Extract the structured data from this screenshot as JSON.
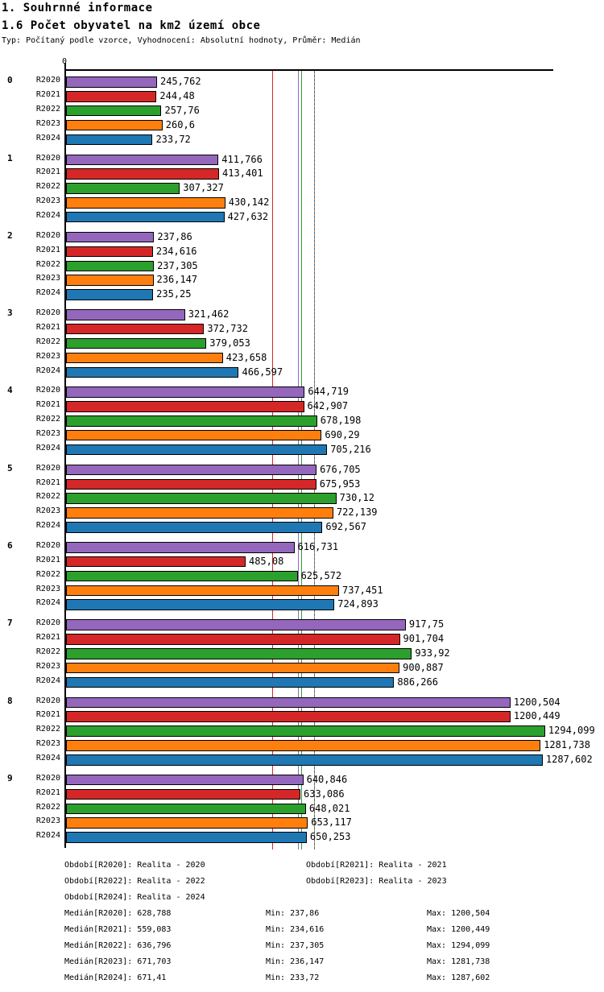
{
  "header": {
    "title": "1. Souhrnné informace",
    "subtitle": "1.6 Počet obyvatel na km2 území obce",
    "meta": "Typ: Počítaný podle vzorce, Vyhodnocení: Absolutní hodnoty, Průměr: Medián"
  },
  "chart_data": {
    "type": "bar",
    "orientation": "horizontal",
    "origin_label": "0",
    "xlim": [
      0,
      1425
    ],
    "grid": false,
    "series": [
      "R2020",
      "R2021",
      "R2022",
      "R2023",
      "R2024"
    ],
    "series_colors": {
      "R2020": "#9467bd",
      "R2021": "#d62728",
      "R2022": "#2ca02c",
      "R2023": "#ff7f0e",
      "R2024": "#1f77b4"
    },
    "groups": [
      {
        "label": "0",
        "values": [
          "245,762",
          "244,48",
          "257,76",
          "260,6",
          "233,72"
        ]
      },
      {
        "label": "1",
        "values": [
          "411,766",
          "413,401",
          "307,327",
          "430,142",
          "427,632"
        ]
      },
      {
        "label": "2",
        "values": [
          "237,86",
          "234,616",
          "237,305",
          "236,147",
          "235,25"
        ]
      },
      {
        "label": "3",
        "values": [
          "321,462",
          "372,732",
          "379,053",
          "423,658",
          "466,597"
        ]
      },
      {
        "label": "4",
        "values": [
          "644,719",
          "642,907",
          "678,198",
          "690,29",
          "705,216"
        ]
      },
      {
        "label": "5",
        "values": [
          "676,705",
          "675,953",
          "730,12",
          "722,139",
          "692,567"
        ]
      },
      {
        "label": "6",
        "values": [
          "616,731",
          "485,08",
          "625,572",
          "737,451",
          "724,893"
        ]
      },
      {
        "label": "7",
        "values": [
          "917,75",
          "901,704",
          "933,92",
          "900,887",
          "886,266"
        ]
      },
      {
        "label": "8",
        "values": [
          "1200,504",
          "1200,449",
          "1294,099",
          "1281,738",
          "1287,602"
        ]
      },
      {
        "label": "9",
        "values": [
          "640,846",
          "633,086",
          "648,021",
          "653,117",
          "650,253"
        ]
      }
    ],
    "median_lines": [
      {
        "series": "R2020",
        "value": "628,788",
        "color": "#9467bd",
        "dash": false
      },
      {
        "series": "R2021",
        "value": "559,083",
        "color": "#d62728",
        "dash": false
      },
      {
        "series": "R2022",
        "value": "636,796",
        "color": "#2ca02c",
        "dash": false
      },
      {
        "series": "R2023",
        "value": "671,703",
        "color": "#ff7f0e",
        "dash": false
      },
      {
        "series": "R2024",
        "value": "671,41",
        "color": "#1f77b4",
        "dash": true
      }
    ]
  },
  "footer": {
    "period_rows": [
      [
        "Období[R2020]: Realita - 2020",
        "Období[R2021]: Realita - 2021"
      ],
      [
        "Období[R2022]: Realita - 2022",
        "Období[R2023]: Realita - 2023"
      ],
      [
        "Období[R2024]: Realita - 2024"
      ]
    ],
    "stat_rows": [
      [
        "Medián[R2020]: 628,788",
        "Min: 237,86",
        "Max: 1200,504"
      ],
      [
        "Medián[R2021]: 559,083",
        "Min: 234,616",
        "Max: 1200,449"
      ],
      [
        "Medián[R2022]: 636,796",
        "Min: 237,305",
        "Max: 1294,099"
      ],
      [
        "Medián[R2023]: 671,703",
        "Min: 236,147",
        "Max: 1281,738"
      ],
      [
        "Medián[R2024]: 671,41",
        "Min: 233,72",
        "Max: 1287,602"
      ]
    ]
  }
}
